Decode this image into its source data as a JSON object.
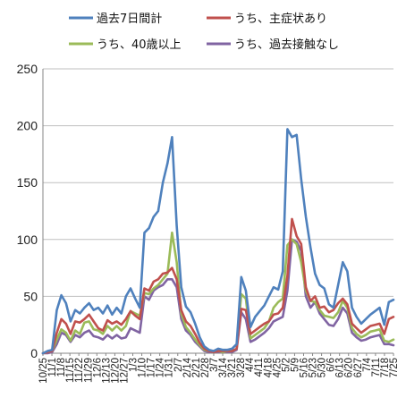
{
  "chart_data": {
    "type": "line",
    "title": "",
    "xlabel": "",
    "ylabel": "",
    "ylim": [
      0,
      250
    ],
    "yticks": [
      0,
      50,
      100,
      150,
      200,
      250
    ],
    "grid": "horizontal",
    "legend_position": "top",
    "x_tick_labels": [
      "10/25",
      "11/1",
      "11/8",
      "11/15",
      "11/22",
      "11/29",
      "12/6",
      "12/13",
      "12/20",
      "12/27",
      "1/3",
      "1/10",
      "1/17",
      "1/24",
      "1/31",
      "2/7",
      "2/14",
      "2/21",
      "2/28",
      "3/7",
      "3/14",
      "3/21",
      "3/28",
      "4/4",
      "4/11",
      "4/18",
      "4/25",
      "5/2",
      "5/9",
      "5/16",
      "5/23",
      "5/30",
      "6/6",
      "6/13",
      "6/20",
      "6/27",
      "7/4",
      "7/11",
      "7/18",
      "7/25"
    ],
    "series": [
      {
        "name": "過去7日間計",
        "color": "#4f81bd",
        "values": [
          0,
          2,
          3,
          38,
          51,
          44,
          28,
          38,
          35,
          40,
          44,
          38,
          40,
          35,
          42,
          34,
          40,
          35,
          50,
          57,
          48,
          40,
          106,
          110,
          120,
          125,
          150,
          167,
          190,
          112,
          58,
          41,
          36,
          26,
          14,
          6,
          3,
          2,
          4,
          3,
          3,
          4,
          8,
          67,
          55,
          23,
          32,
          37,
          42,
          50,
          58,
          56,
          72,
          197,
          190,
          192,
          153,
          120,
          93,
          70,
          60,
          57,
          43,
          40,
          60,
          80,
          72,
          40,
          32,
          26,
          30,
          34,
          37,
          40,
          25,
          45,
          47
        ]
      },
      {
        "name": "うち、主症状あり",
        "color": "#c0504d",
        "values": [
          0,
          1,
          2,
          18,
          30,
          26,
          17,
          28,
          27,
          30,
          34,
          28,
          22,
          20,
          29,
          26,
          28,
          25,
          30,
          37,
          33,
          30,
          57,
          55,
          63,
          65,
          70,
          71,
          75,
          65,
          38,
          28,
          24,
          17,
          9,
          4,
          2,
          1,
          2,
          2,
          2,
          2,
          4,
          39,
          38,
          17,
          20,
          23,
          26,
          28,
          34,
          35,
          40,
          68,
          118,
          103,
          96,
          58,
          46,
          50,
          40,
          41,
          36,
          38,
          44,
          48,
          43,
          26,
          22,
          18,
          21,
          24,
          25,
          26,
          17,
          30,
          32
        ]
      },
      {
        "name": "うち、40歳以上",
        "color": "#9bbb59",
        "values": [
          0,
          1,
          2,
          12,
          21,
          18,
          11,
          20,
          17,
          27,
          28,
          21,
          20,
          17,
          24,
          20,
          24,
          20,
          24,
          37,
          35,
          33,
          53,
          52,
          57,
          60,
          65,
          70,
          106,
          80,
          35,
          23,
          18,
          12,
          7,
          3,
          2,
          1,
          2,
          1,
          2,
          2,
          4,
          52,
          48,
          13,
          16,
          19,
          22,
          28,
          40,
          45,
          48,
          95,
          100,
          96,
          80,
          55,
          46,
          45,
          38,
          33,
          32,
          31,
          36,
          46,
          40,
          22,
          17,
          14,
          16,
          19,
          20,
          21,
          11,
          10,
          12
        ]
      },
      {
        "name": "うち、過去接触なし",
        "color": "#8064a2",
        "values": [
          0,
          0,
          1,
          8,
          18,
          16,
          10,
          16,
          14,
          18,
          20,
          15,
          14,
          12,
          16,
          13,
          16,
          13,
          14,
          22,
          20,
          18,
          50,
          47,
          55,
          58,
          60,
          65,
          65,
          58,
          30,
          20,
          16,
          10,
          6,
          2,
          1,
          1,
          1,
          1,
          1,
          1,
          3,
          36,
          30,
          10,
          12,
          15,
          18,
          22,
          28,
          30,
          32,
          55,
          100,
          98,
          90,
          50,
          40,
          45,
          35,
          30,
          25,
          24,
          30,
          40,
          35,
          18,
          14,
          11,
          12,
          14,
          15,
          16,
          8,
          8,
          7
        ]
      }
    ]
  }
}
